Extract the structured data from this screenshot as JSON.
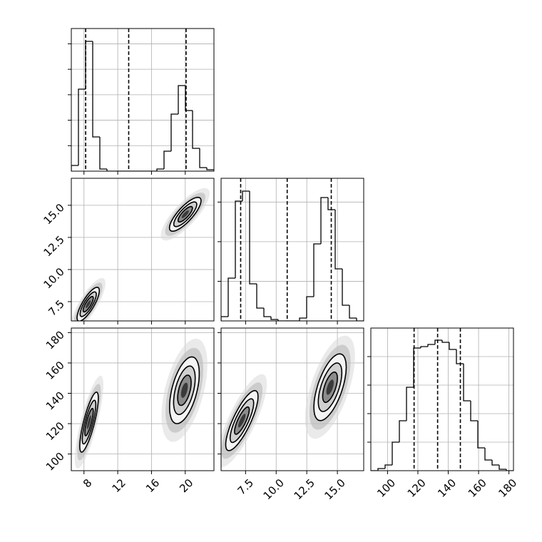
{
  "chart_data": [
    {
      "type": "histogram",
      "color": "#000000",
      "bins": [
        6.5,
        7.345,
        8.19,
        9.035,
        9.88,
        10.725,
        11.57,
        12.415,
        13.26,
        14.105,
        14.95,
        15.795,
        16.64,
        17.485,
        18.33,
        19.175,
        20.02,
        20.865,
        21.71,
        22.555,
        23.4
      ],
      "counts": [
        112,
        1610,
        2548,
        672,
        42,
        0,
        0,
        0,
        0,
        0,
        0,
        0,
        42,
        392,
        1120,
        1680,
        1190,
        448,
        70,
        28
      ],
      "quantiles": [
        8.2,
        13.3,
        20.1
      ],
      "xlim": [
        6.5,
        23.4
      ],
      "xticks": [
        8,
        12,
        16,
        20
      ],
      "ylim": [
        0,
        2800
      ],
      "yticks": [
        500,
        1000,
        1500,
        2000,
        2500
      ],
      "grid": true
    },
    {
      "type": "contour",
      "xlim": [
        6.5,
        23.4
      ],
      "xticks": [
        8,
        12,
        16,
        20
      ],
      "ylim": [
        6.0,
        17.1
      ],
      "yticks": [
        7.5,
        {
          "value": 10,
          "label": "10.0"
        },
        12.5,
        {
          "value": 15,
          "label": "15.0"
        }
      ],
      "clusters": [
        {
          "x": 8.5,
          "y": 7.3,
          "sx": 0.6,
          "sy": 0.6,
          "rho": 0.8
        },
        {
          "x": 20.0,
          "y": 14.3,
          "sx": 0.85,
          "sy": 0.6,
          "rho": 0.8
        }
      ],
      "grid": true
    },
    {
      "type": "histogram",
      "color": "#000000",
      "bins": [
        5.5,
        6.0825,
        6.665,
        7.2475,
        7.83,
        8.4125,
        8.995,
        9.5775,
        10.16,
        10.7425,
        11.325,
        11.9075,
        12.49,
        13.0725,
        13.655,
        14.2375,
        14.82,
        15.4025,
        15.985,
        16.5675,
        17.15
      ],
      "counts": [
        54,
        540,
        1512,
        1638,
        468,
        162,
        54,
        18,
        0,
        0,
        0,
        36,
        306,
        972,
        1557,
        1404,
        657,
        198,
        36,
        0
      ],
      "quantiles": [
        7.1,
        10.9,
        14.5
      ],
      "xlim": [
        5.5,
        17.15
      ],
      "xticks": [
        7.5,
        {
          "value": 10,
          "label": "10.0"
        },
        12.5,
        {
          "value": 15,
          "label": "15.0"
        }
      ],
      "ylim": [
        0,
        1800
      ],
      "yticks": [
        500,
        1000,
        1500
      ],
      "grid": true
    },
    {
      "type": "contour",
      "xlim": [
        6.5,
        23.4
      ],
      "xticks": [
        8,
        12,
        16,
        20
      ],
      "ylim": [
        89,
        183
      ],
      "yticks": [
        100,
        120,
        140,
        160,
        180
      ],
      "clusters": [
        {
          "x": 8.6,
          "y": 121,
          "sx": 0.5,
          "sy": 9,
          "rho": 0.8
        },
        {
          "x": 19.9,
          "y": 142,
          "sx": 0.8,
          "sy": 10,
          "rho": 0.5
        }
      ],
      "grid": true
    },
    {
      "type": "contour",
      "xlim": [
        5.5,
        17.15
      ],
      "xticks": [
        7.5,
        {
          "value": 10,
          "label": "10.0"
        },
        12.5,
        {
          "value": 15,
          "label": "15.0"
        }
      ],
      "ylim": [
        89,
        183
      ],
      "yticks": [
        100,
        120,
        140,
        160,
        180
      ],
      "clusters": [
        {
          "x": 7.2,
          "y": 122,
          "sx": 0.6,
          "sy": 9,
          "rho": 0.8
        },
        {
          "x": 14.4,
          "y": 144,
          "sx": 0.6,
          "sy": 10,
          "rho": 0.6
        }
      ],
      "grid": true
    },
    {
      "type": "histogram",
      "color": "#000000",
      "bins": [
        89,
        93.7,
        98.4,
        103.1,
        107.8,
        112.5,
        117.2,
        121.9,
        126.6,
        131.3,
        136,
        140.7,
        145.4,
        150.1,
        154.8,
        159.5,
        164.2,
        168.9,
        173.6,
        178.3,
        183
      ],
      "counts": [
        0,
        15,
        40,
        200,
        350,
        585,
        860,
        870,
        885,
        915,
        900,
        850,
        750,
        490,
        350,
        160,
        75,
        40,
        10,
        0
      ],
      "quantiles": [
        117.5,
        133,
        148
      ],
      "xlim": [
        89,
        183
      ],
      "xticks": [
        100,
        120,
        140,
        160,
        180
      ],
      "ylim": [
        0,
        1000
      ],
      "yticks": [
        200,
        400,
        600,
        800
      ],
      "grid": true
    }
  ]
}
